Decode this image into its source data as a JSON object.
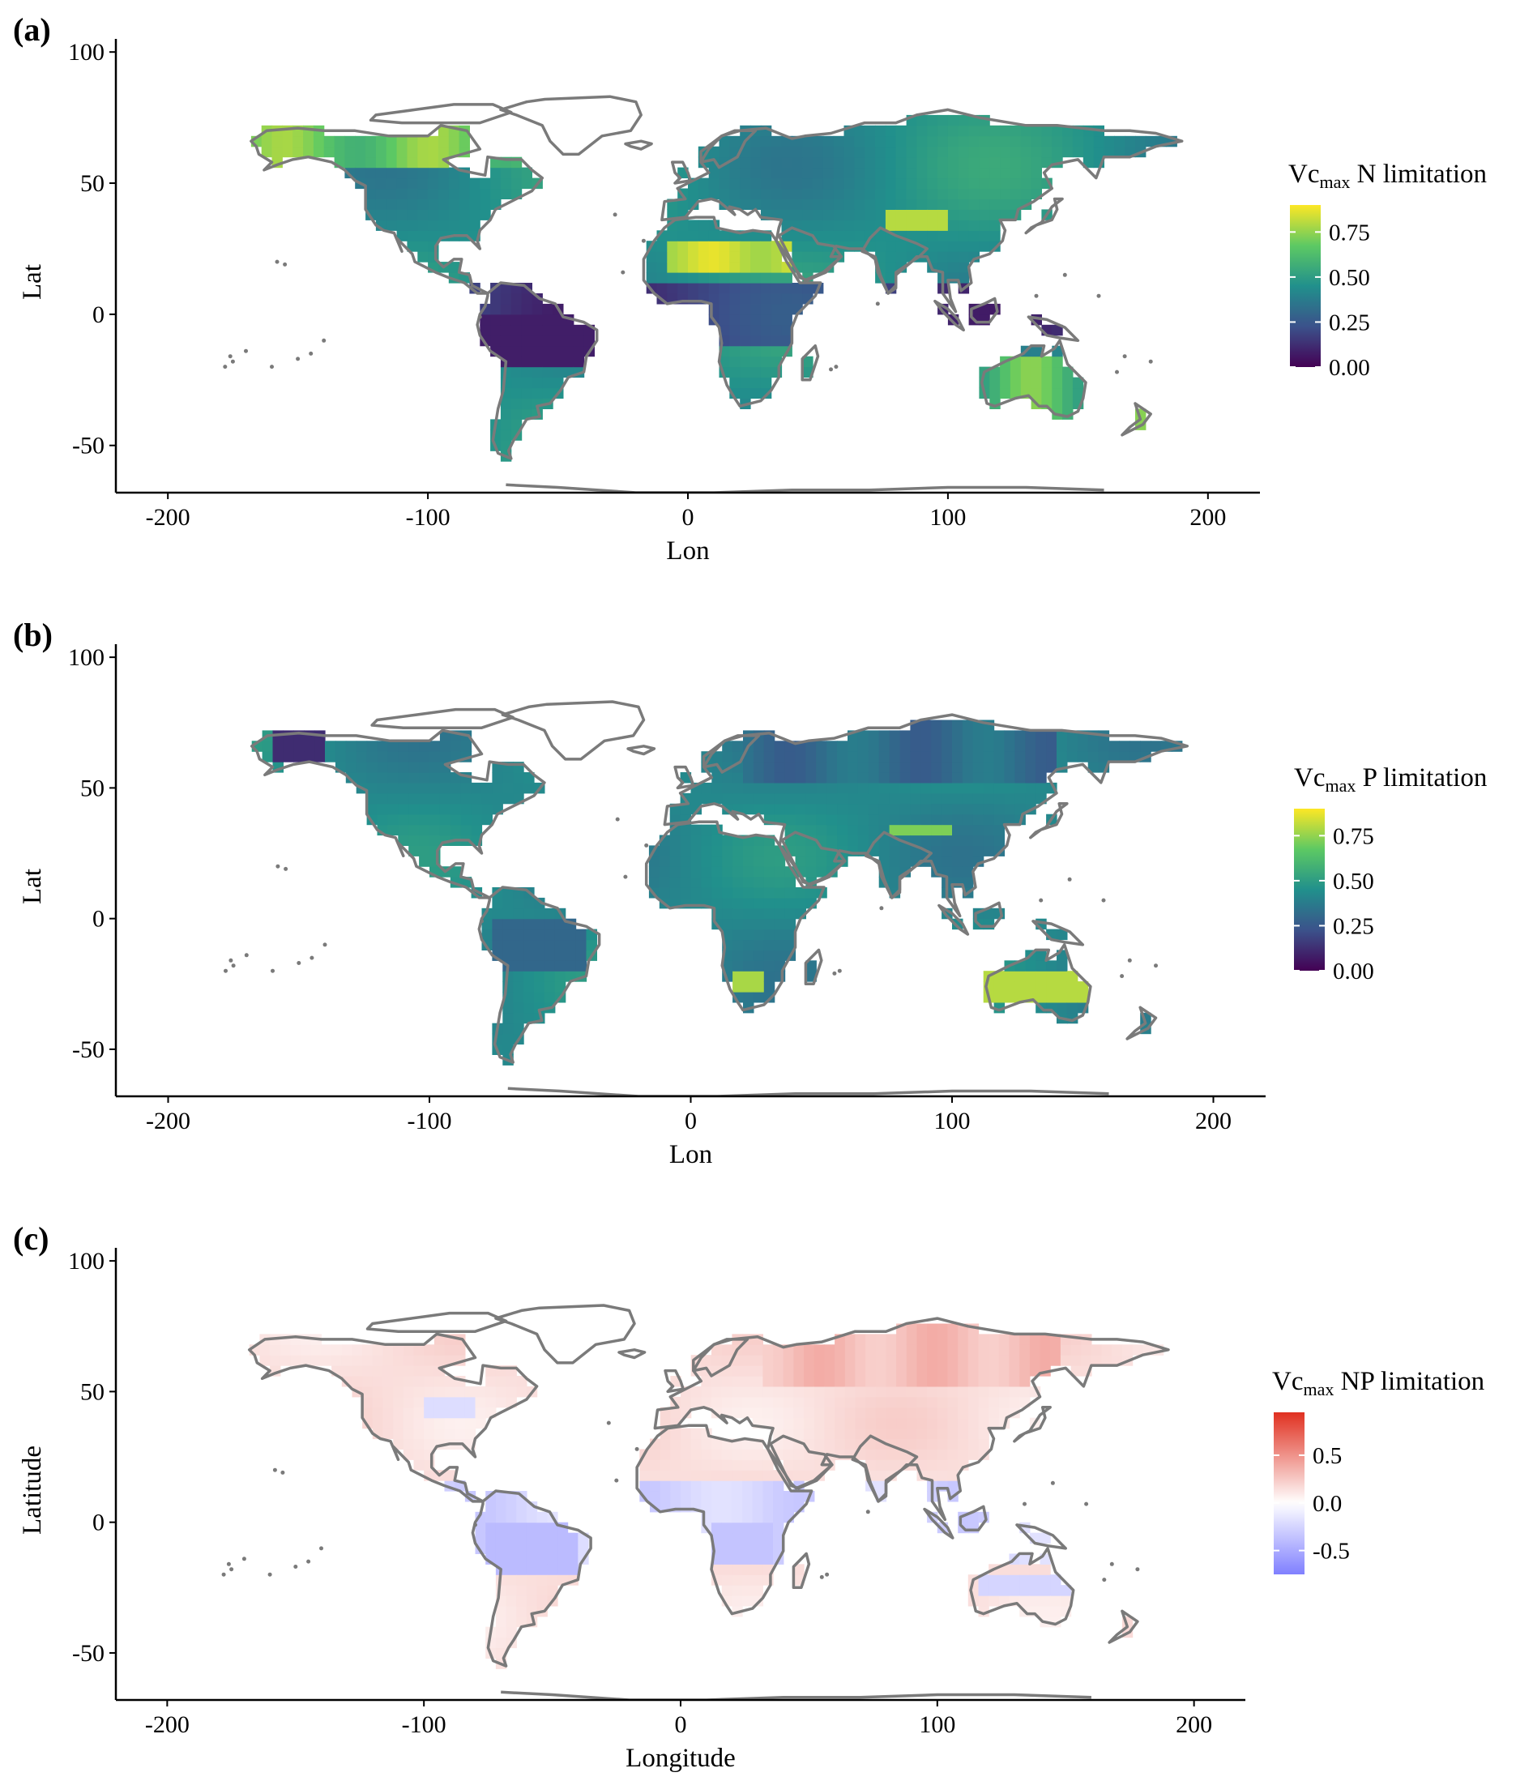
{
  "figure": {
    "colors": {
      "coastline": "#7a7a7a",
      "axis": "#000000",
      "viridis": [
        "#440154",
        "#3b528b",
        "#21908c",
        "#5dc963",
        "#fde725"
      ],
      "diverging": [
        "#8080ff",
        "#ffffff",
        "#e03020"
      ]
    }
  },
  "chart_data": [
    {
      "type": "heatmap",
      "panel_label": "(a)",
      "xlabel": "Lon",
      "ylabel": "Lat",
      "xlim": [
        -220,
        220
      ],
      "ylim": [
        -68,
        105
      ],
      "x_ticks": [
        -200,
        -100,
        0,
        100,
        200
      ],
      "x_tick_labels": [
        "-200",
        "-100",
        "0",
        "100",
        "200"
      ],
      "y_ticks": [
        -50,
        0,
        50,
        100
      ],
      "y_tick_labels": [
        "-50",
        "0",
        "50",
        "100"
      ],
      "grid": false,
      "legend": {
        "title_main": "Vc",
        "title_sub": "max",
        "title_rest": " N limitation",
        "placement": "right",
        "scale": "viridis",
        "range": [
          0,
          0.9
        ],
        "ticks": [
          0,
          0.25,
          0.5,
          0.75
        ],
        "tick_labels": [
          "0.00",
          "0.25",
          "0.50",
          "0.75"
        ]
      }
    },
    {
      "type": "heatmap",
      "panel_label": "(b)",
      "xlabel": "Lon",
      "ylabel": "Lat",
      "xlim": [
        -220,
        220
      ],
      "ylim": [
        -68,
        105
      ],
      "x_ticks": [
        -200,
        -100,
        0,
        100,
        200
      ],
      "x_tick_labels": [
        "-200",
        "-100",
        "0",
        "100",
        "200"
      ],
      "y_ticks": [
        -50,
        0,
        50,
        100
      ],
      "y_tick_labels": [
        "-50",
        "0",
        "50",
        "100"
      ],
      "grid": false,
      "legend": {
        "title_main": "Vc",
        "title_sub": "max",
        "title_rest": " P limitation",
        "placement": "right",
        "scale": "viridis",
        "range": [
          0,
          0.9
        ],
        "ticks": [
          0,
          0.25,
          0.5,
          0.75
        ],
        "tick_labels": [
          "0.00",
          "0.25",
          "0.50",
          "0.75"
        ]
      }
    },
    {
      "type": "heatmap",
      "panel_label": "(c)",
      "xlabel": "Longitude",
      "ylabel": "Latitude",
      "xlim": [
        -220,
        220
      ],
      "ylim": [
        -68,
        105
      ],
      "x_ticks": [
        -200,
        -100,
        0,
        100,
        200
      ],
      "x_tick_labels": [
        "-200",
        "-100",
        "0",
        "100",
        "200"
      ],
      "y_ticks": [
        -50,
        0,
        50,
        100
      ],
      "y_tick_labels": [
        "-50",
        "0",
        "50",
        "100"
      ],
      "grid": false,
      "legend": {
        "title_main": "Vc",
        "title_sub": "max",
        "title_rest": " NP limitation",
        "placement": "right",
        "scale": "diverging",
        "range": [
          -0.75,
          0.95
        ],
        "ticks": [
          -0.5,
          0,
          0.5
        ],
        "tick_labels": [
          "-0.5",
          "0.0",
          "0.5"
        ]
      }
    }
  ]
}
